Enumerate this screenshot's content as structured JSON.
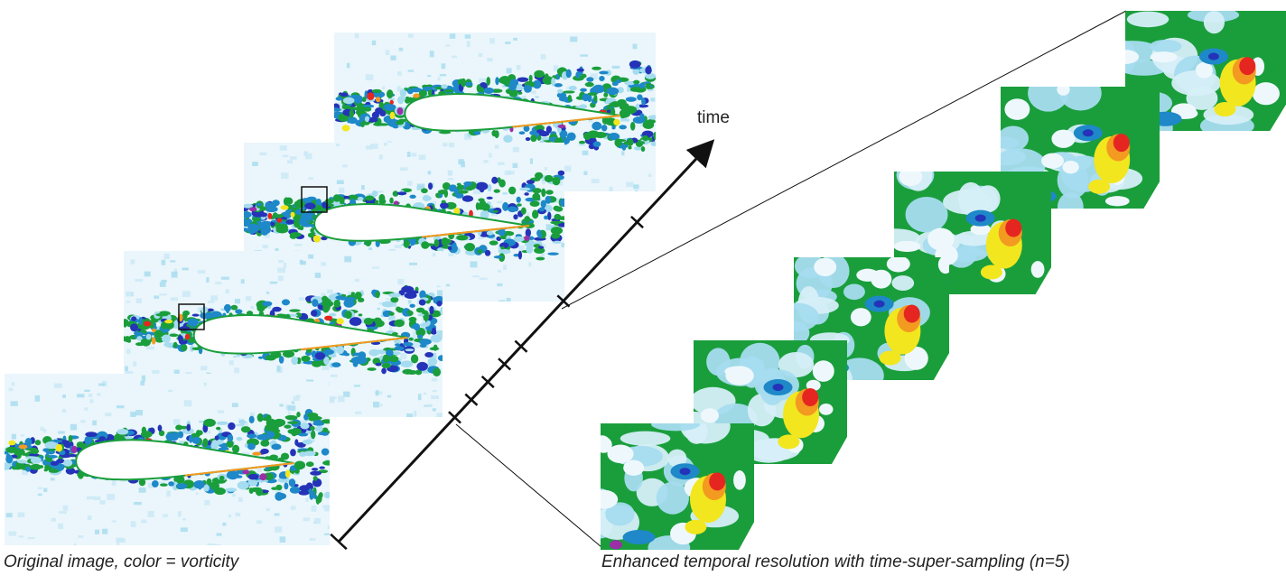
{
  "labels": {
    "time_axis": "time",
    "caption_left": "Original image, color = vorticity",
    "caption_right": "Enhanced temporal resolution with time-super-sampling (n=5)"
  },
  "palette": {
    "background": "#eaf6fb",
    "light_blue": "#a6dcef",
    "blue": "#1e88c8",
    "green": "#1a9e3c",
    "dark_blue": "#2433b8",
    "purple": "#9b2fa8",
    "yellow": "#f2e61f",
    "orange": "#f39a21",
    "red": "#e52620",
    "airfoil": "#ffffff"
  },
  "original_frames": 4,
  "super_sampled_frames": 6,
  "time_axis_ticks": 7
}
